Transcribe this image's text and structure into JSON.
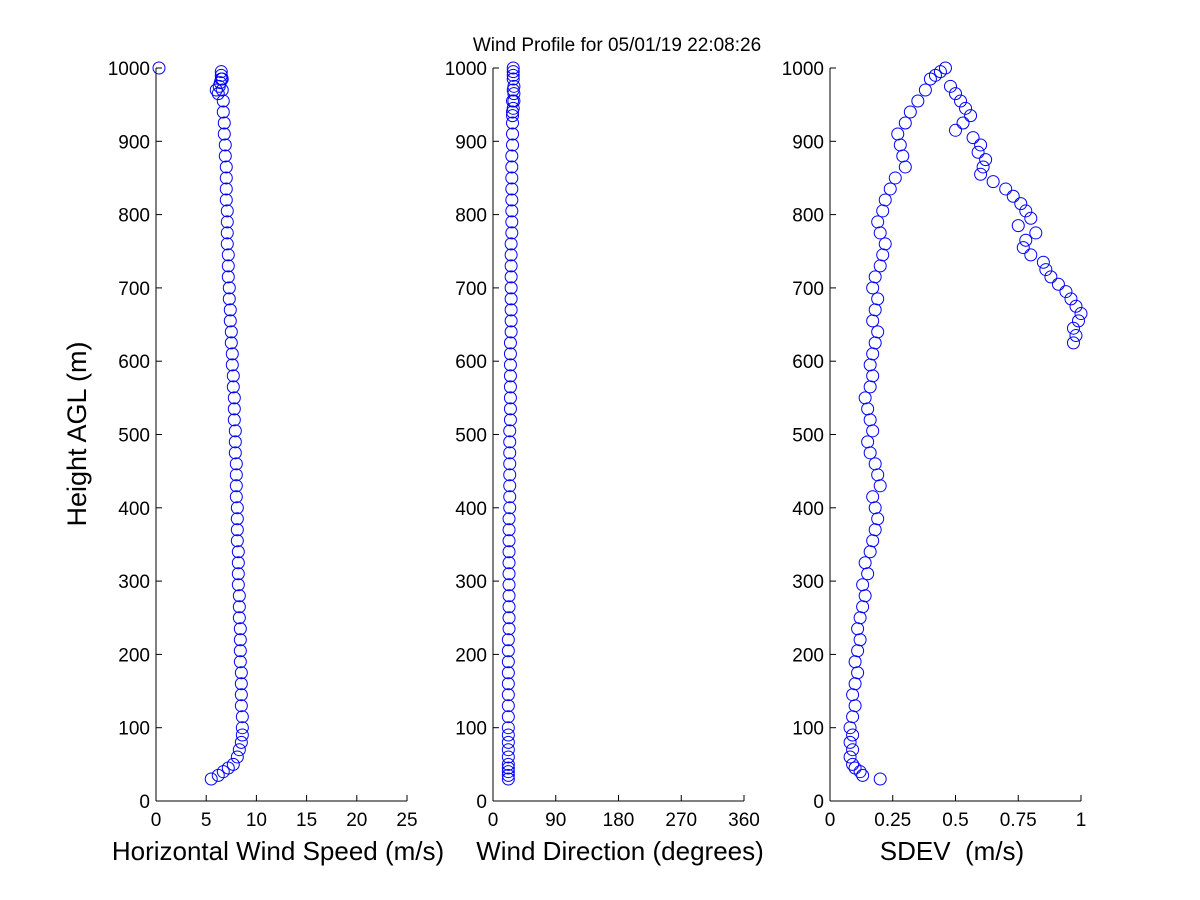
{
  "figure": {
    "title": "Wind Profile for  05/01/19 22:08:26"
  },
  "chart_data": [
    {
      "type": "scatter",
      "xlabel": "Horizontal Wind Speed (m/s)",
      "ylabel": "Height AGL (m)",
      "xlim": [
        0,
        25
      ],
      "ylim": [
        0,
        1000
      ],
      "xticks": [
        0,
        5,
        10,
        15,
        20,
        25
      ],
      "xtick_labels": [
        "0",
        "5",
        "10",
        "15",
        "20",
        "25"
      ],
      "yticks": [
        0,
        100,
        200,
        300,
        400,
        500,
        600,
        700,
        800,
        900,
        1000
      ],
      "ytick_labels": [
        "0",
        "100",
        "200",
        "300",
        "400",
        "500",
        "600",
        "700",
        "800",
        "900",
        "1000"
      ],
      "grid": false,
      "marker_color": "#0000ff",
      "series": [
        {
          "x": [
            5.5,
            6.2,
            6.7,
            7.2,
            7.7,
            8.1,
            8.3,
            8.5,
            8.6,
            8.6,
            8.6,
            8.5,
            8.5,
            8.5,
            8.5,
            8.4,
            8.4,
            8.4,
            8.4,
            8.3,
            8.3,
            8.3,
            8.2,
            8.2,
            8.2,
            8.2,
            8.1,
            8.1,
            8.1,
            8.1,
            8.0,
            8.0,
            8.0,
            8.0,
            7.9,
            7.9,
            7.9,
            7.8,
            7.8,
            7.8,
            7.7,
            7.7,
            7.6,
            7.6,
            7.5,
            7.5,
            7.4,
            7.4,
            7.3,
            7.3,
            7.2,
            7.2,
            7.2,
            7.1,
            7.1,
            7.1,
            7.1,
            7.0,
            7.0,
            7.0,
            7.0,
            6.9,
            6.9,
            6.8,
            6.8,
            6.7,
            6.7,
            6.6,
            6.6,
            6.5,
            6.5,
            6.4,
            6.3,
            6.2,
            6.0,
            6.5,
            0.3
          ],
          "y": [
            30,
            35,
            40,
            45,
            50,
            60,
            70,
            80,
            90,
            100,
            115,
            130,
            145,
            160,
            175,
            190,
            205,
            220,
            235,
            250,
            265,
            280,
            295,
            310,
            325,
            340,
            355,
            370,
            385,
            400,
            415,
            430,
            445,
            460,
            475,
            490,
            505,
            520,
            535,
            550,
            565,
            580,
            595,
            610,
            625,
            640,
            655,
            670,
            685,
            700,
            715,
            730,
            745,
            760,
            775,
            790,
            805,
            820,
            835,
            850,
            865,
            880,
            895,
            910,
            925,
            940,
            955,
            970,
            985,
            990,
            995,
            980,
            975,
            965,
            970,
            985,
            1000
          ]
        }
      ]
    },
    {
      "type": "scatter",
      "xlabel": "Wind Direction (degrees)",
      "ylabel": "",
      "xlim": [
        0,
        360
      ],
      "ylim": [
        0,
        1000
      ],
      "xticks": [
        0,
        90,
        180,
        270,
        360
      ],
      "xtick_labels": [
        "0",
        "90",
        "180",
        "270",
        "360"
      ],
      "yticks": [
        0,
        100,
        200,
        300,
        400,
        500,
        600,
        700,
        800,
        900,
        1000
      ],
      "ytick_labels": [
        "0",
        "100",
        "200",
        "300",
        "400",
        "500",
        "600",
        "700",
        "800",
        "900",
        "1000"
      ],
      "grid": false,
      "marker_color": "#0000ff",
      "series": [
        {
          "x": [
            22,
            22,
            22,
            22,
            22,
            22,
            22,
            22,
            22,
            22,
            22,
            22,
            22,
            22,
            22,
            22,
            22,
            22,
            23,
            23,
            23,
            23,
            23,
            23,
            23,
            23,
            23,
            23,
            23,
            24,
            24,
            24,
            24,
            24,
            24,
            24,
            24,
            25,
            25,
            25,
            25,
            25,
            25,
            25,
            25,
            26,
            26,
            26,
            26,
            26,
            26,
            26,
            26,
            26,
            27,
            27,
            27,
            27,
            27,
            27,
            27,
            27,
            28,
            28,
            28,
            28,
            28,
            29,
            29,
            29,
            29,
            29,
            30,
            30,
            30,
            29,
            28
          ],
          "y": [
            30,
            35,
            40,
            45,
            50,
            60,
            70,
            80,
            90,
            100,
            115,
            130,
            145,
            160,
            175,
            190,
            205,
            220,
            235,
            250,
            265,
            280,
            295,
            310,
            325,
            340,
            355,
            370,
            385,
            400,
            415,
            430,
            445,
            460,
            475,
            490,
            505,
            520,
            535,
            550,
            565,
            580,
            595,
            610,
            625,
            640,
            655,
            670,
            685,
            700,
            715,
            730,
            745,
            760,
            775,
            790,
            805,
            820,
            835,
            850,
            865,
            880,
            895,
            910,
            925,
            940,
            955,
            970,
            985,
            990,
            995,
            1000,
            975,
            965,
            955,
            945,
            935
          ]
        }
      ]
    },
    {
      "type": "scatter",
      "xlabel": "SDEV  (m/s)",
      "ylabel": "",
      "xlim": [
        0,
        1
      ],
      "ylim": [
        0,
        1000
      ],
      "xticks": [
        0,
        0.25,
        0.5,
        0.75,
        1
      ],
      "xtick_labels": [
        "0",
        "0.25",
        "0.5",
        "0.75",
        "1"
      ],
      "yticks": [
        0,
        100,
        200,
        300,
        400,
        500,
        600,
        700,
        800,
        900,
        1000
      ],
      "ytick_labels": [
        "0",
        "100",
        "200",
        "300",
        "400",
        "500",
        "600",
        "700",
        "800",
        "900",
        "1000"
      ],
      "grid": false,
      "marker_color": "#0000ff",
      "series": [
        {
          "x": [
            0.2,
            0.13,
            0.12,
            0.1,
            0.09,
            0.08,
            0.09,
            0.08,
            0.09,
            0.08,
            0.09,
            0.1,
            0.09,
            0.1,
            0.11,
            0.1,
            0.11,
            0.12,
            0.11,
            0.12,
            0.13,
            0.14,
            0.13,
            0.15,
            0.14,
            0.16,
            0.17,
            0.18,
            0.19,
            0.18,
            0.17,
            0.2,
            0.19,
            0.18,
            0.16,
            0.15,
            0.17,
            0.16,
            0.15,
            0.14,
            0.16,
            0.17,
            0.16,
            0.17,
            0.18,
            0.19,
            0.17,
            0.18,
            0.19,
            0.17,
            0.18,
            0.2,
            0.21,
            0.22,
            0.2,
            0.19,
            0.21,
            0.22,
            0.24,
            0.26,
            0.3,
            0.29,
            0.28,
            0.27,
            0.3,
            0.32,
            0.35,
            0.38,
            0.4,
            0.42,
            0.44,
            0.46,
            0.48,
            0.5,
            0.52,
            0.54,
            0.56,
            0.53,
            0.5,
            0.57,
            0.6,
            0.59,
            0.62,
            0.61,
            0.6,
            0.65,
            0.7,
            0.73,
            0.76,
            0.78,
            0.8,
            0.75,
            0.82,
            0.78,
            0.77,
            0.8,
            0.85,
            0.86,
            0.88,
            0.91,
            0.94,
            0.96,
            0.98,
            1.0,
            0.99,
            0.97,
            0.98,
            0.97
          ],
          "y": [
            30,
            35,
            40,
            45,
            50,
            60,
            70,
            80,
            90,
            100,
            115,
            130,
            145,
            160,
            175,
            190,
            205,
            220,
            235,
            250,
            265,
            280,
            295,
            310,
            325,
            340,
            355,
            370,
            385,
            400,
            415,
            430,
            445,
            460,
            475,
            490,
            505,
            520,
            535,
            550,
            565,
            580,
            595,
            610,
            625,
            640,
            655,
            670,
            685,
            700,
            715,
            730,
            745,
            760,
            775,
            790,
            805,
            820,
            835,
            850,
            865,
            880,
            895,
            910,
            925,
            940,
            955,
            970,
            985,
            990,
            995,
            1000,
            975,
            965,
            955,
            945,
            935,
            925,
            915,
            905,
            895,
            885,
            875,
            865,
            855,
            845,
            835,
            825,
            815,
            805,
            795,
            785,
            775,
            765,
            755,
            745,
            735,
            725,
            715,
            705,
            695,
            685,
            675,
            665,
            655,
            645,
            635,
            625
          ]
        }
      ]
    }
  ]
}
